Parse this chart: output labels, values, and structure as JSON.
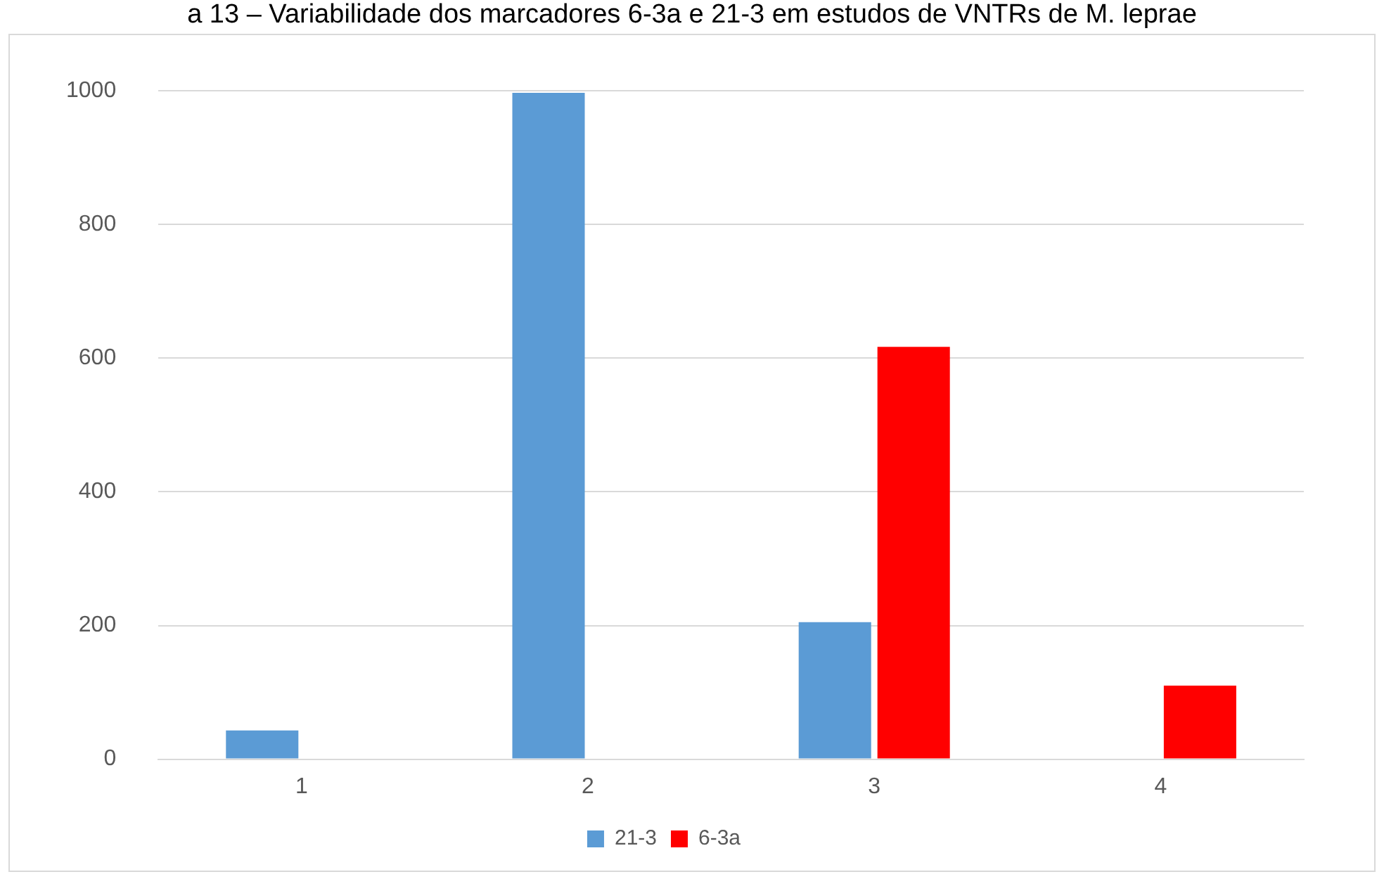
{
  "chart_data": {
    "type": "bar",
    "title": "a 13 – Variabilidade dos marcadores 6-3a e 21-3 em estudos de VNTRs de M. leprae",
    "categories": [
      "1",
      "2",
      "3",
      "4"
    ],
    "series": [
      {
        "name": "21-3",
        "color": "#5b9bd5",
        "values": [
          43,
          997,
          205,
          null
        ]
      },
      {
        "name": "6-3a",
        "color": "#ff0000",
        "values": [
          null,
          null,
          617,
          110
        ]
      }
    ],
    "ylim": [
      0,
      1000
    ],
    "yticks": [
      0,
      200,
      400,
      600,
      800,
      1000
    ],
    "grid": "y",
    "legend": "bottom"
  }
}
